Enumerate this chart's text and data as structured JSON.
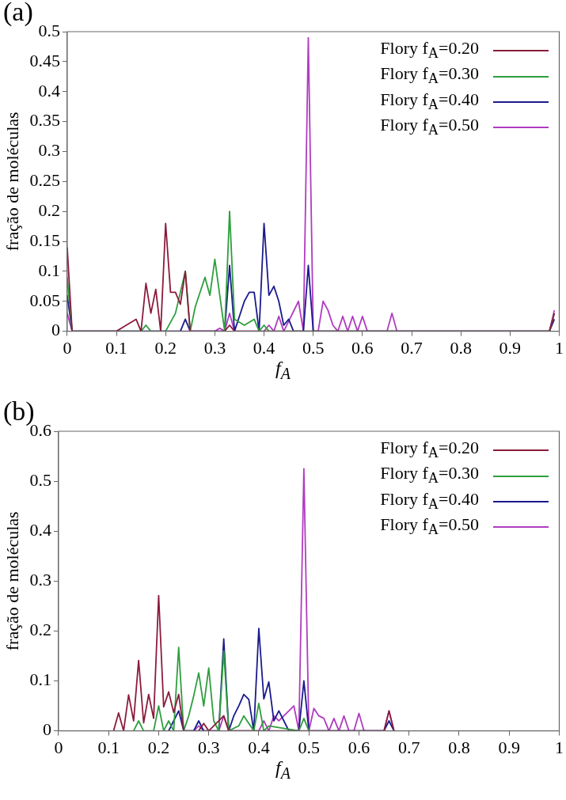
{
  "chart_data": [
    {
      "type": "line",
      "title": "(a)",
      "xlabel": "f$_{A}$",
      "ylabel": "fração de moléculas",
      "xlim": [
        0,
        1
      ],
      "xticks": [
        0,
        0.1,
        0.2,
        0.3,
        0.4,
        0.5,
        0.6,
        0.7,
        0.8,
        0.9,
        1
      ],
      "ylim": [
        0,
        0.5
      ],
      "yticks": [
        0,
        0.05,
        0.1,
        0.15,
        0.2,
        0.25,
        0.3,
        0.35,
        0.4,
        0.45,
        0.5
      ],
      "grid": false,
      "legend": "top right",
      "marker": "none",
      "line_style": "solid",
      "series": [
        {
          "name": "Flory f$_{A}$=0.20",
          "color": "#8b1c3c",
          "x": [
            0,
            0.01,
            0.1,
            0.12,
            0.14,
            0.15,
            0.16,
            0.17,
            0.18,
            0.19,
            0.2,
            0.21,
            0.22,
            0.23,
            0.24,
            0.25,
            0.32,
            0.33,
            0.34,
            0.98,
            0.99
          ],
          "values": [
            0.14,
            0,
            0,
            0.01,
            0.02,
            0,
            0.08,
            0.03,
            0.07,
            0,
            0.18,
            0.065,
            0.065,
            0.045,
            0.1,
            0,
            0,
            0.01,
            0,
            0,
            0.03
          ]
        },
        {
          "name": "Flory f$_{A}$=0.30",
          "color": "#2e9e3e",
          "x": [
            0,
            0.01,
            0.15,
            0.16,
            0.17,
            0.2,
            0.22,
            0.24,
            0.25,
            0.26,
            0.28,
            0.29,
            0.3,
            0.31,
            0.32,
            0.33,
            0.34,
            0.36,
            0.38,
            0.39,
            0.4,
            0.41,
            0.98,
            0.99
          ],
          "values": [
            0.09,
            0,
            0,
            0.01,
            0,
            0,
            0.03,
            0.1,
            0,
            0.04,
            0.09,
            0.06,
            0.12,
            0.06,
            0,
            0.2,
            0.02,
            0.01,
            0.02,
            0,
            0.01,
            0,
            0,
            0.03
          ]
        },
        {
          "name": "Flory f$_{A}$=0.40",
          "color": "#1a1a8c",
          "x": [
            0,
            0.01,
            0.23,
            0.24,
            0.25,
            0.32,
            0.33,
            0.34,
            0.36,
            0.37,
            0.38,
            0.39,
            0.4,
            0.41,
            0.42,
            0.43,
            0.44,
            0.45,
            0.46,
            0.48,
            0.49,
            0.5,
            0.98,
            0.99
          ],
          "values": [
            0.06,
            0,
            0,
            0.02,
            0,
            0,
            0.11,
            0,
            0.05,
            0.065,
            0.065,
            0,
            0.18,
            0.06,
            0.075,
            0.05,
            0.01,
            0.02,
            0,
            0,
            0.11,
            0,
            0,
            0.02
          ]
        },
        {
          "name": "Flory f$_{A}$=0.50",
          "color": "#b03cc0",
          "x": [
            0,
            0.01,
            0.3,
            0.31,
            0.32,
            0.33,
            0.34,
            0.4,
            0.41,
            0.42,
            0.43,
            0.44,
            0.47,
            0.48,
            0.49,
            0.5,
            0.51,
            0.52,
            0.53,
            0.54,
            0.55,
            0.56,
            0.57,
            0.58,
            0.59,
            0.6,
            0.61,
            0.65,
            0.66,
            0.67,
            0.98,
            0.99
          ],
          "values": [
            0.03,
            0,
            0,
            0.005,
            0,
            0.03,
            0,
            0,
            0.01,
            0,
            0.025,
            0,
            0.05,
            0,
            0.49,
            0,
            0,
            0.05,
            0.035,
            0.01,
            0,
            0.025,
            0,
            0.025,
            0,
            0.025,
            0,
            0,
            0.03,
            0,
            0,
            0.035
          ]
        }
      ]
    },
    {
      "type": "line",
      "title": "(b)",
      "xlabel": "f$_{A}$",
      "ylabel": "fração de moléculas",
      "xlim": [
        0,
        1
      ],
      "xticks": [
        0,
        0.1,
        0.2,
        0.3,
        0.4,
        0.5,
        0.6,
        0.7,
        0.8,
        0.9,
        1
      ],
      "ylim": [
        0,
        0.6
      ],
      "yticks": [
        0,
        0.1,
        0.2,
        0.3,
        0.4,
        0.5,
        0.6
      ],
      "grid": false,
      "legend": "top right",
      "marker": "none",
      "line_style": "solid",
      "series": [
        {
          "name": "Flory f$_{A}$=0.20",
          "color": "#8b1c3c",
          "x": [
            0.11,
            0.12,
            0.13,
            0.14,
            0.15,
            0.16,
            0.17,
            0.18,
            0.19,
            0.2,
            0.21,
            0.22,
            0.23,
            0.24,
            0.25,
            0.28,
            0.29,
            0.3,
            0.33,
            0.34,
            0.65,
            0.66,
            0.67
          ],
          "values": [
            0,
            0.036,
            0,
            0.072,
            0.02,
            0.141,
            0.016,
            0.073,
            0.025,
            0.271,
            0.048,
            0.078,
            0.037,
            0.073,
            0,
            0,
            0.015,
            0,
            0.03,
            0,
            0,
            0.04,
            0
          ]
        },
        {
          "name": "Flory f$_{A}$=0.30",
          "color": "#2e9e3e",
          "x": [
            0.15,
            0.16,
            0.17,
            0.19,
            0.2,
            0.21,
            0.22,
            0.23,
            0.24,
            0.25,
            0.26,
            0.27,
            0.28,
            0.29,
            0.3,
            0.31,
            0.32,
            0.33,
            0.34,
            0.36,
            0.37,
            0.39,
            0.4,
            0.41,
            0.42,
            0.48,
            0.49,
            0.5
          ],
          "values": [
            0,
            0.02,
            0,
            0,
            0.05,
            0,
            0.02,
            0,
            0.167,
            0,
            0.03,
            0.07,
            0.116,
            0.05,
            0.126,
            0.02,
            0,
            0.16,
            0,
            0.01,
            0.03,
            0,
            0.055,
            0,
            0.01,
            0,
            0.025,
            0
          ]
        },
        {
          "name": "Flory f$_{A}$=0.40",
          "color": "#1a1a8c",
          "x": [
            0.22,
            0.23,
            0.24,
            0.25,
            0.27,
            0.28,
            0.29,
            0.32,
            0.33,
            0.34,
            0.35,
            0.36,
            0.37,
            0.38,
            0.39,
            0.4,
            0.41,
            0.42,
            0.43,
            0.44,
            0.45,
            0.46,
            0.48,
            0.49,
            0.5,
            0.65,
            0.66,
            0.67
          ],
          "values": [
            0,
            0.02,
            0.04,
            0,
            0,
            0.02,
            0,
            0,
            0.184,
            0,
            0.03,
            0.05,
            0.073,
            0.063,
            0,
            0.205,
            0.064,
            0.098,
            0.02,
            0.04,
            0.02,
            0,
            0,
            0.1,
            0,
            0,
            0.02,
            0
          ]
        },
        {
          "name": "Flory f$_{A}$=0.50",
          "color": "#b03cc0",
          "x": [
            0.27,
            0.28,
            0.29,
            0.32,
            0.33,
            0.34,
            0.4,
            0.41,
            0.42,
            0.43,
            0.44,
            0.45,
            0.46,
            0.47,
            0.48,
            0.49,
            0.5,
            0.51,
            0.52,
            0.53,
            0.54,
            0.55,
            0.56,
            0.57,
            0.58,
            0.59,
            0.6,
            0.61,
            0.65,
            0.66,
            0.67
          ],
          "values": [
            0,
            0.01,
            0,
            0,
            0.03,
            0,
            0,
            0.02,
            0,
            0.03,
            0.02,
            0.03,
            0.04,
            0.05,
            0,
            0.525,
            0,
            0.045,
            0.03,
            0.025,
            0,
            0.025,
            0,
            0.03,
            0,
            0,
            0.035,
            0,
            0,
            0.04,
            0
          ]
        }
      ]
    }
  ]
}
